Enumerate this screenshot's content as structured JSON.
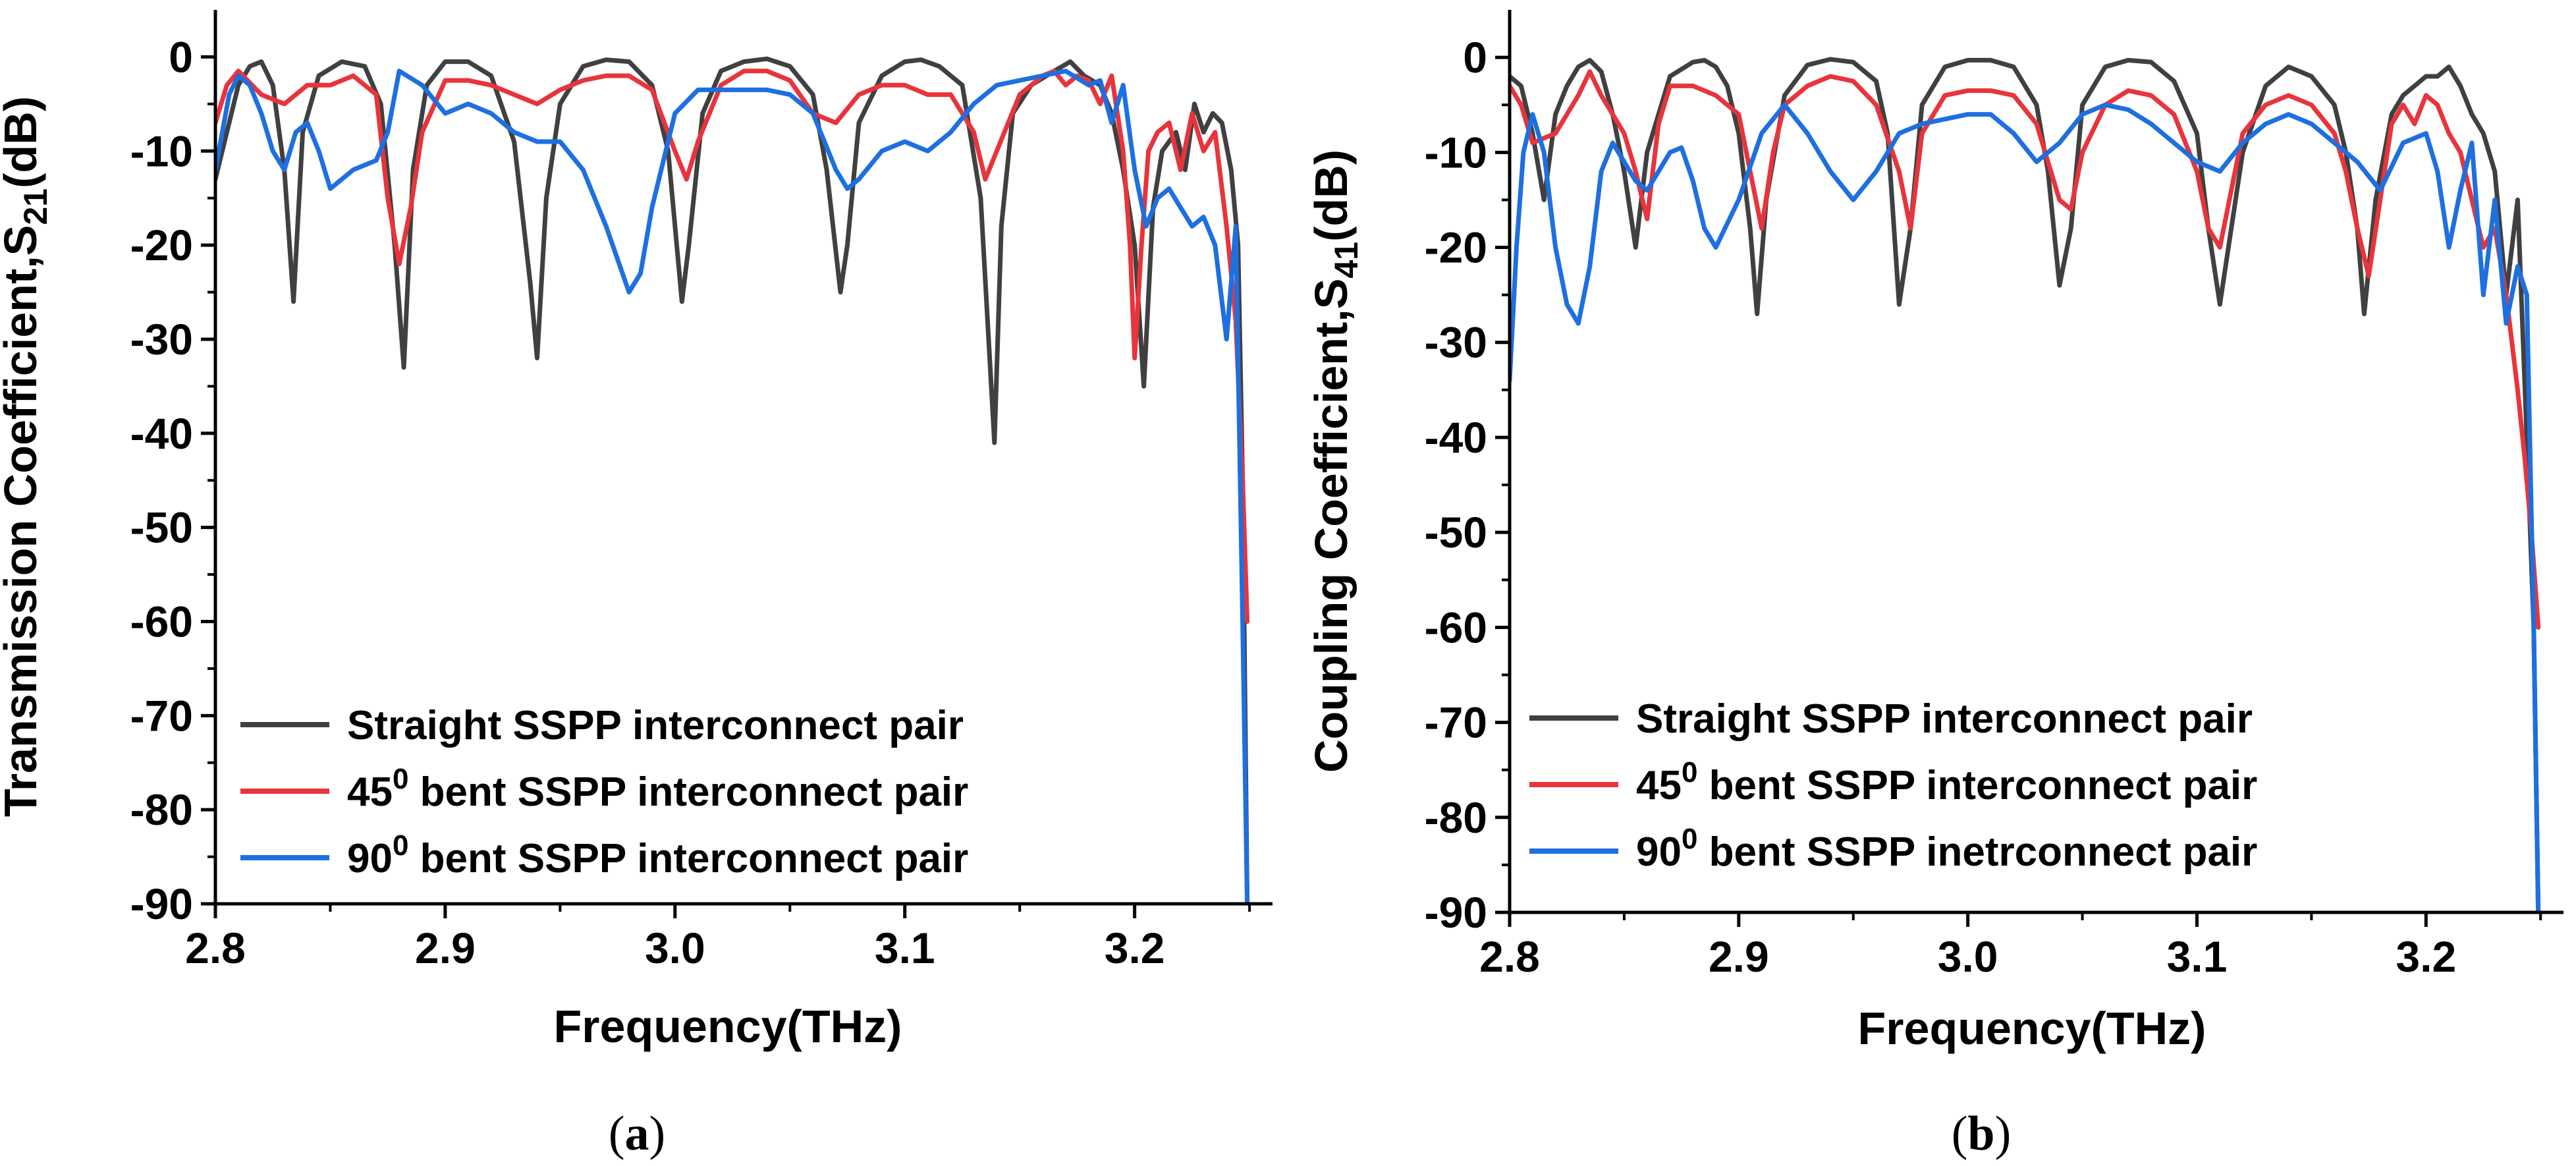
{
  "chart_data": [
    {
      "type": "line",
      "panel_label_open": "(",
      "panel_label_letter": "a",
      "panel_label_close": ")",
      "ylabel_main": "Transmission Coefficient,S",
      "ylabel_sub": "21",
      "ylabel_tail": "(dB)",
      "xlabel": "Frequency(THz)",
      "xlim": [
        2.8,
        3.26
      ],
      "ylim": [
        -90,
        5
      ],
      "xticks": [
        2.8,
        2.9,
        3.0,
        3.1,
        3.2
      ],
      "xtick_labels": [
        "2.8",
        "2.9",
        "3.0",
        "3.1",
        "3.2"
      ],
      "yticks": [
        0,
        -10,
        -20,
        -30,
        -40,
        -50,
        -60,
        -70,
        -80,
        -90
      ],
      "ytick_labels": [
        "0",
        "-10",
        "-20",
        "-30",
        "-40",
        "-50",
        "-60",
        "-70",
        "-80",
        "-90"
      ],
      "legend_position": "bottom-left",
      "series": [
        {
          "legend_pre": "Straight SSPP interconnect pair",
          "legend_sup": "",
          "legend_post": "",
          "color": "#404040",
          "x": [
            2.8,
            2.805,
            2.81,
            2.815,
            2.82,
            2.825,
            2.83,
            2.834,
            2.838,
            2.845,
            2.855,
            2.865,
            2.872,
            2.878,
            2.882,
            2.886,
            2.892,
            2.9,
            2.91,
            2.92,
            2.93,
            2.937,
            2.94,
            2.944,
            2.95,
            2.96,
            2.97,
            2.98,
            2.99,
            2.997,
            3.003,
            3.006,
            3.012,
            3.02,
            3.03,
            3.04,
            3.05,
            3.06,
            3.066,
            3.072,
            3.075,
            3.08,
            3.09,
            3.1,
            3.107,
            3.115,
            3.125,
            3.133,
            3.139,
            3.142,
            3.147,
            3.155,
            3.165,
            3.172,
            3.178,
            3.185,
            3.19,
            3.195,
            3.2,
            3.204,
            3.208,
            3.212,
            3.218,
            3.222,
            3.226,
            3.23,
            3.234,
            3.238,
            3.242,
            3.245,
            3.247,
            3.249
          ],
          "y": [
            -13,
            -8,
            -3,
            -1,
            -0.5,
            -3,
            -12,
            -26,
            -8,
            -2,
            -0.5,
            -1,
            -5,
            -20,
            -33,
            -12,
            -3,
            -0.5,
            -0.5,
            -2,
            -9,
            -24,
            -32,
            -15,
            -5,
            -1,
            -0.3,
            -0.5,
            -3,
            -10,
            -26,
            -20,
            -6,
            -1.5,
            -0.5,
            -0.2,
            -1,
            -4,
            -12,
            -25,
            -20,
            -7,
            -2,
            -0.5,
            -0.3,
            -1,
            -3,
            -15,
            -41,
            -18,
            -6,
            -3,
            -1.5,
            -0.5,
            -2,
            -3,
            -6,
            -12,
            -20,
            -35,
            -16,
            -10,
            -8,
            -12,
            -5,
            -8,
            -6,
            -7,
            -12,
            -20,
            -45,
            -90
          ]
        },
        {
          "legend_pre": "45",
          "legend_sup": "0",
          "legend_post": " bent SSPP interconnect pair",
          "color": "#e8343c",
          "x": [
            2.8,
            2.805,
            2.81,
            2.82,
            2.83,
            2.84,
            2.85,
            2.86,
            2.87,
            2.875,
            2.88,
            2.885,
            2.89,
            2.9,
            2.91,
            2.92,
            2.93,
            2.94,
            2.95,
            2.96,
            2.97,
            2.98,
            2.99,
            3.0,
            3.005,
            3.01,
            3.02,
            3.03,
            3.04,
            3.05,
            3.06,
            3.07,
            3.08,
            3.09,
            3.1,
            3.11,
            3.12,
            3.13,
            3.135,
            3.14,
            3.15,
            3.16,
            3.165,
            3.17,
            3.175,
            3.18,
            3.185,
            3.19,
            3.195,
            3.198,
            3.2,
            3.203,
            3.206,
            3.21,
            3.215,
            3.22,
            3.225,
            3.23,
            3.235,
            3.24,
            3.244,
            3.247,
            3.249
          ],
          "y": [
            -7,
            -3,
            -1.5,
            -4,
            -5,
            -3,
            -3,
            -2,
            -4,
            -15,
            -22,
            -16,
            -8,
            -2.5,
            -2.5,
            -3,
            -4,
            -5,
            -3.5,
            -2.5,
            -2,
            -2,
            -3.5,
            -10,
            -13,
            -9,
            -3,
            -1.5,
            -1.5,
            -2.5,
            -6,
            -7,
            -4,
            -3,
            -3,
            -4,
            -4,
            -8,
            -13,
            -10,
            -4,
            -2,
            -1.5,
            -3,
            -2,
            -2.5,
            -5,
            -2,
            -10,
            -20,
            -32,
            -20,
            -10,
            -8,
            -7,
            -12,
            -6,
            -10,
            -8,
            -18,
            -28,
            -45,
            -60
          ]
        },
        {
          "legend_pre": "90",
          "legend_sup": "0",
          "legend_post": " bent SSPP interconnect pair",
          "color": "#1e6fe0",
          "x": [
            2.8,
            2.803,
            2.806,
            2.81,
            2.815,
            2.82,
            2.825,
            2.83,
            2.835,
            2.84,
            2.845,
            2.85,
            2.86,
            2.87,
            2.875,
            2.88,
            2.89,
            2.9,
            2.91,
            2.92,
            2.93,
            2.94,
            2.95,
            2.96,
            2.97,
            2.98,
            2.985,
            2.99,
            3.0,
            3.01,
            3.02,
            3.03,
            3.04,
            3.05,
            3.06,
            3.07,
            3.075,
            3.08,
            3.09,
            3.1,
            3.11,
            3.12,
            3.13,
            3.14,
            3.15,
            3.16,
            3.17,
            3.18,
            3.185,
            3.19,
            3.195,
            3.2,
            3.205,
            3.21,
            3.215,
            3.22,
            3.225,
            3.23,
            3.235,
            3.24,
            3.244,
            3.247,
            3.249
          ],
          "y": [
            -12,
            -8,
            -4,
            -2,
            -3,
            -6,
            -10,
            -12,
            -8,
            -7,
            -10,
            -14,
            -12,
            -11,
            -8,
            -1.5,
            -3,
            -6,
            -5,
            -6,
            -8,
            -9,
            -9,
            -12,
            -18,
            -25,
            -23,
            -16,
            -6,
            -3.5,
            -3.5,
            -3.5,
            -3.5,
            -4,
            -6,
            -12,
            -14,
            -13,
            -10,
            -9,
            -10,
            -8,
            -5,
            -3,
            -2.5,
            -2,
            -1.5,
            -3,
            -2.5,
            -7,
            -3,
            -12,
            -18,
            -15,
            -14,
            -16,
            -18,
            -17,
            -20,
            -30,
            -18,
            -60,
            -90
          ]
        }
      ]
    },
    {
      "type": "line",
      "panel_label_open": "(",
      "panel_label_letter": "b",
      "panel_label_close": ")",
      "ylabel_main": "Coupling Coefficient,S",
      "ylabel_sub": "41",
      "ylabel_tail": "(dB)",
      "xlabel": "Frequency(THz)",
      "xlim": [
        2.8,
        3.26
      ],
      "ylim": [
        -90,
        5
      ],
      "xticks": [
        2.8,
        2.9,
        3.0,
        3.1,
        3.2
      ],
      "xtick_labels": [
        "2.8",
        "2.9",
        "3.0",
        "3.1",
        "3.2"
      ],
      "yticks": [
        0,
        -10,
        -20,
        -30,
        -40,
        -50,
        -60,
        -70,
        -80,
        -90
      ],
      "ytick_labels": [
        "0",
        "-10",
        "-20",
        "-30",
        "-40",
        "-50",
        "-60",
        "-70",
        "-80",
        "-90"
      ],
      "legend_position": "bottom-left",
      "series": [
        {
          "legend_pre": "Straight SSPP interconnect pair",
          "legend_sup": "",
          "legend_post": "",
          "color": "#404040",
          "x": [
            2.8,
            2.805,
            2.81,
            2.815,
            2.82,
            2.825,
            2.83,
            2.835,
            2.84,
            2.845,
            2.85,
            2.855,
            2.86,
            2.87,
            2.88,
            2.885,
            2.89,
            2.895,
            2.9,
            2.905,
            2.908,
            2.912,
            2.92,
            2.93,
            2.94,
            2.95,
            2.96,
            2.965,
            2.97,
            2.975,
            2.98,
            2.99,
            3.0,
            3.01,
            3.02,
            3.03,
            3.035,
            3.04,
            3.045,
            3.05,
            3.06,
            3.07,
            3.08,
            3.09,
            3.1,
            3.105,
            3.11,
            3.12,
            3.13,
            3.14,
            3.15,
            3.16,
            3.165,
            3.17,
            3.173,
            3.178,
            3.185,
            3.19,
            3.195,
            3.2,
            3.205,
            3.21,
            3.215,
            3.22,
            3.225,
            3.23,
            3.235,
            3.24,
            3.244,
            3.247,
            3.249
          ],
          "y": [
            -2,
            -3,
            -8,
            -15,
            -6,
            -3,
            -1,
            -0.3,
            -1.5,
            -6,
            -12,
            -20,
            -10,
            -2,
            -0.5,
            -0.3,
            -1,
            -3,
            -8,
            -18,
            -27,
            -15,
            -4,
            -0.8,
            -0.2,
            -0.5,
            -2.5,
            -8,
            -26,
            -18,
            -5,
            -1,
            -0.3,
            -0.3,
            -1,
            -5,
            -12,
            -24,
            -18,
            -5,
            -1,
            -0.3,
            -0.5,
            -2.5,
            -8,
            -18,
            -26,
            -10,
            -3,
            -1,
            -2,
            -5,
            -10,
            -18,
            -27,
            -15,
            -6,
            -4,
            -3,
            -2,
            -2,
            -1,
            -3,
            -6,
            -8,
            -12,
            -25,
            -15,
            -40,
            -60,
            -90
          ]
        },
        {
          "legend_pre": "45",
          "legend_sup": "0",
          "legend_post": " bent SSPP interconnect pair",
          "color": "#e8343c",
          "x": [
            2.8,
            2.805,
            2.81,
            2.82,
            2.83,
            2.835,
            2.84,
            2.85,
            2.855,
            2.86,
            2.865,
            2.87,
            2.88,
            2.89,
            2.9,
            2.905,
            2.91,
            2.915,
            2.92,
            2.93,
            2.94,
            2.95,
            2.96,
            2.97,
            2.975,
            2.98,
            2.99,
            3.0,
            3.01,
            3.02,
            3.03,
            3.04,
            3.045,
            3.05,
            3.06,
            3.07,
            3.08,
            3.09,
            3.1,
            3.105,
            3.11,
            3.12,
            3.13,
            3.14,
            3.15,
            3.16,
            3.165,
            3.17,
            3.175,
            3.18,
            3.185,
            3.19,
            3.195,
            3.2,
            3.205,
            3.21,
            3.215,
            3.22,
            3.225,
            3.23,
            3.235,
            3.24,
            3.243,
            3.246,
            3.249
          ],
          "y": [
            -3,
            -5,
            -9,
            -8,
            -4,
            -1.5,
            -4,
            -8,
            -12,
            -17,
            -7,
            -3,
            -3,
            -4,
            -6,
            -12,
            -18,
            -10,
            -5,
            -3,
            -2,
            -2.5,
            -5,
            -12,
            -18,
            -8,
            -4,
            -3.5,
            -3.5,
            -4,
            -7,
            -15,
            -16,
            -10,
            -5,
            -3.5,
            -4,
            -6,
            -12,
            -18,
            -20,
            -8,
            -5,
            -4,
            -5,
            -8,
            -12,
            -18,
            -23,
            -15,
            -7,
            -5,
            -7,
            -4,
            -5,
            -8,
            -10,
            -15,
            -20,
            -18,
            -25,
            -35,
            -42,
            -50,
            -60
          ]
        },
        {
          "legend_pre": "90",
          "legend_sup": "0",
          "legend_post": " bent SSPP inetrconnect pair",
          "color": "#1e6fe0",
          "x": [
            2.8,
            2.803,
            2.806,
            2.81,
            2.815,
            2.82,
            2.825,
            2.83,
            2.835,
            2.84,
            2.845,
            2.85,
            2.855,
            2.86,
            2.865,
            2.87,
            2.875,
            2.88,
            2.885,
            2.89,
            2.9,
            2.91,
            2.92,
            2.93,
            2.94,
            2.95,
            2.96,
            2.97,
            2.98,
            2.99,
            3.0,
            3.01,
            3.02,
            3.03,
            3.04,
            3.05,
            3.06,
            3.07,
            3.08,
            3.09,
            3.1,
            3.11,
            3.12,
            3.13,
            3.14,
            3.15,
            3.16,
            3.17,
            3.18,
            3.19,
            3.2,
            3.205,
            3.21,
            3.215,
            3.22,
            3.225,
            3.23,
            3.235,
            3.24,
            3.244,
            3.247,
            3.249
          ],
          "y": [
            -34,
            -20,
            -10,
            -6,
            -10,
            -20,
            -26,
            -28,
            -22,
            -12,
            -9,
            -11,
            -13,
            -14,
            -12,
            -10,
            -9.5,
            -13,
            -18,
            -20,
            -15,
            -8,
            -5,
            -8,
            -12,
            -15,
            -12,
            -8,
            -7,
            -6.5,
            -6,
            -6,
            -8,
            -11,
            -9,
            -6,
            -5,
            -5.5,
            -7,
            -9,
            -11,
            -12,
            -9,
            -7,
            -6,
            -7,
            -9,
            -11,
            -14,
            -9,
            -8,
            -12,
            -20,
            -14,
            -9,
            -25,
            -15,
            -28,
            -22,
            -25,
            -60,
            -90
          ]
        }
      ]
    }
  ]
}
